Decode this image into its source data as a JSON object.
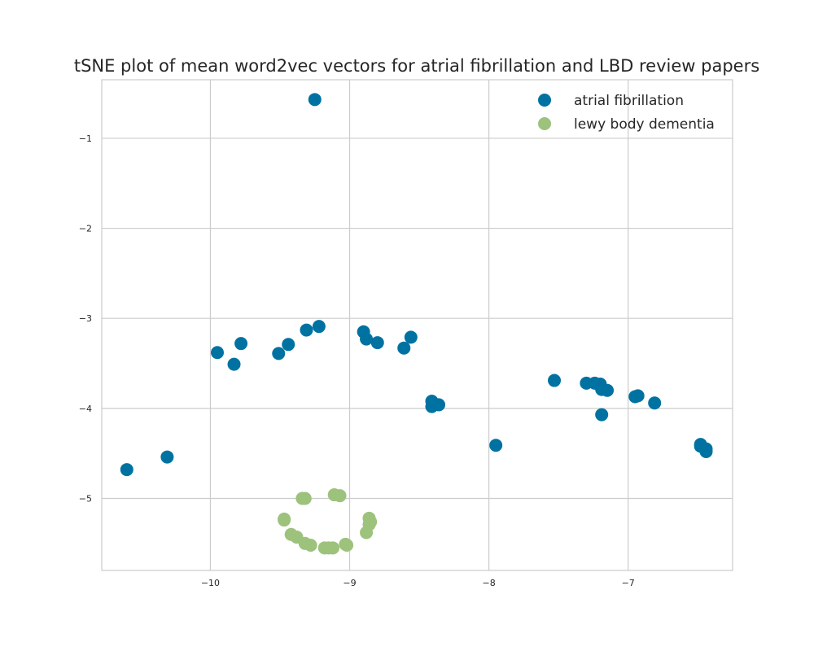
{
  "chart_data": {
    "type": "scatter",
    "title": "tSNE plot of mean word2vec vectors for atrial fibrillation and LBD review papers",
    "xlabel": "",
    "ylabel": "",
    "xlim": [
      -10.78,
      -6.25
    ],
    "ylim": [
      -5.8,
      -0.35
    ],
    "xticks": [
      -10,
      -9,
      -8,
      -7
    ],
    "yticks": [
      -1,
      -2,
      -3,
      -4,
      -5
    ],
    "xtick_labels": [
      "−10",
      "−9",
      "−8",
      "−7"
    ],
    "ytick_labels": [
      "−1",
      "−2",
      "−3",
      "−4",
      "−5"
    ],
    "grid": true,
    "legend_position": "top-right",
    "series": [
      {
        "name": "atrial fibrillation",
        "color": "#0072a2",
        "points": [
          [
            -9.25,
            -0.57
          ],
          [
            -9.95,
            -3.38
          ],
          [
            -9.83,
            -3.51
          ],
          [
            -9.78,
            -3.28
          ],
          [
            -9.51,
            -3.39
          ],
          [
            -9.44,
            -3.29
          ],
          [
            -9.31,
            -3.13
          ],
          [
            -9.22,
            -3.09
          ],
          [
            -8.9,
            -3.15
          ],
          [
            -8.88,
            -3.23
          ],
          [
            -8.8,
            -3.27
          ],
          [
            -8.61,
            -3.33
          ],
          [
            -8.56,
            -3.21
          ],
          [
            -10.6,
            -4.68
          ],
          [
            -10.31,
            -4.54
          ],
          [
            -8.41,
            -3.92
          ],
          [
            -8.41,
            -3.98
          ],
          [
            -8.36,
            -3.96
          ],
          [
            -7.95,
            -4.41
          ],
          [
            -7.53,
            -3.69
          ],
          [
            -7.3,
            -3.72
          ],
          [
            -7.24,
            -3.72
          ],
          [
            -7.2,
            -3.73
          ],
          [
            -7.19,
            -3.79
          ],
          [
            -7.15,
            -3.8
          ],
          [
            -6.95,
            -3.87
          ],
          [
            -6.93,
            -3.86
          ],
          [
            -6.81,
            -3.94
          ],
          [
            -7.19,
            -4.07
          ],
          [
            -6.48,
            -4.4
          ],
          [
            -6.48,
            -4.42
          ],
          [
            -6.44,
            -4.45
          ],
          [
            -6.44,
            -4.48
          ]
        ]
      },
      {
        "name": "lewy body dementia",
        "color": "#9dc27c",
        "points": [
          [
            -9.11,
            -4.96
          ],
          [
            -9.07,
            -4.97
          ],
          [
            -9.34,
            -5.0
          ],
          [
            -9.32,
            -5.0
          ],
          [
            -9.47,
            -5.23
          ],
          [
            -9.47,
            -5.24
          ],
          [
            -8.86,
            -5.22
          ],
          [
            -8.85,
            -5.26
          ],
          [
            -8.86,
            -5.29
          ],
          [
            -8.88,
            -5.38
          ],
          [
            -9.42,
            -5.4
          ],
          [
            -9.38,
            -5.43
          ],
          [
            -9.32,
            -5.5
          ],
          [
            -9.28,
            -5.52
          ],
          [
            -9.03,
            -5.51
          ],
          [
            -9.02,
            -5.52
          ],
          [
            -9.18,
            -5.55
          ],
          [
            -9.15,
            -5.55
          ],
          [
            -9.12,
            -5.55
          ]
        ]
      }
    ]
  }
}
